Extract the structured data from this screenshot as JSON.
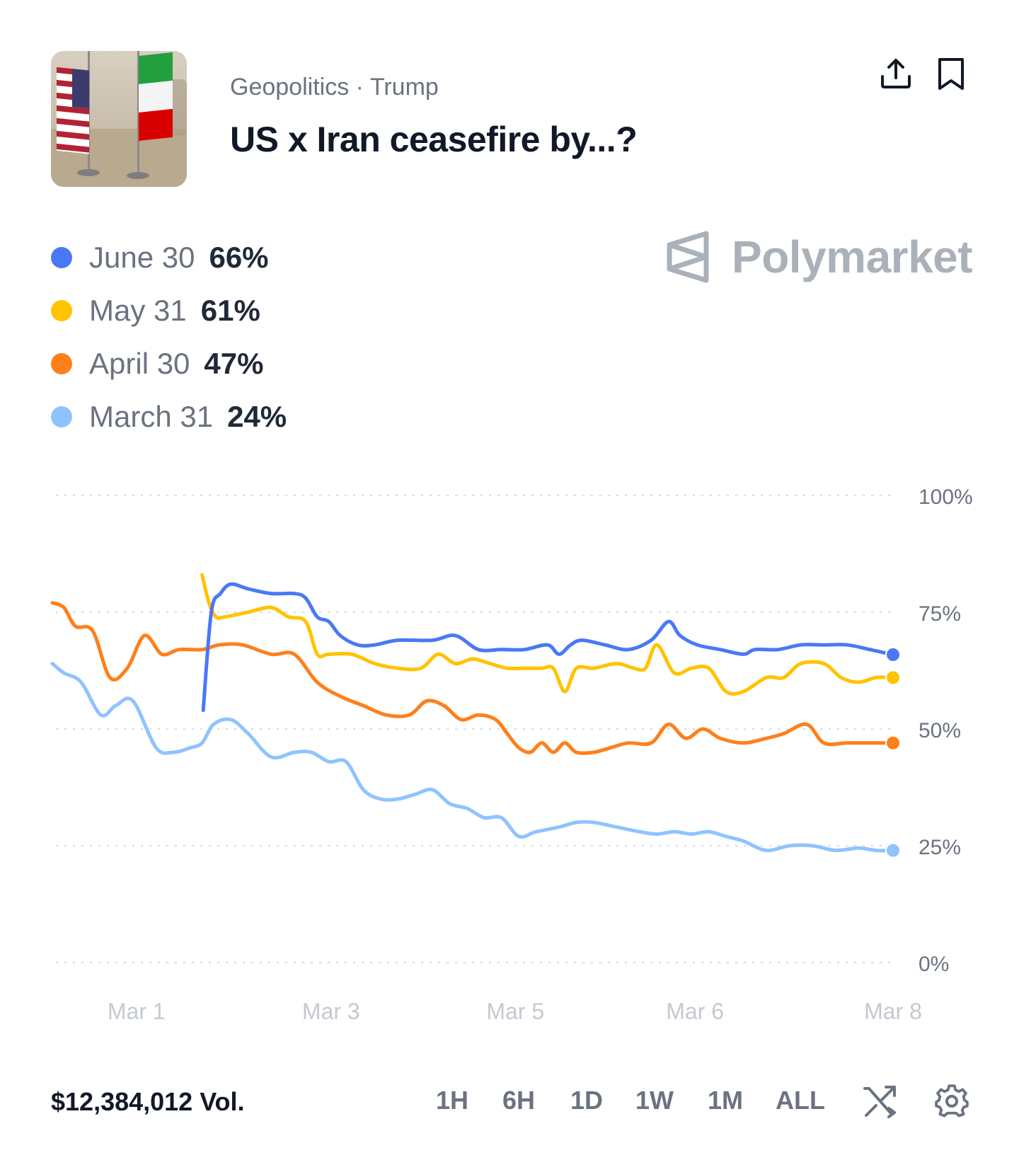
{
  "header": {
    "category": "Geopolitics",
    "separator": "·",
    "tag": "Trump",
    "title": "US x Iran ceasefire by...?",
    "share_icon": "share-icon",
    "bookmark_icon": "bookmark-icon"
  },
  "brand": {
    "name": "Polymarket"
  },
  "legend": [
    {
      "label": "June 30",
      "value": "66%",
      "color": "#4a78f5"
    },
    {
      "label": "May 31",
      "value": "61%",
      "color": "#ffc300"
    },
    {
      "label": "April 30",
      "value": "47%",
      "color": "#ff7f1a"
    },
    {
      "label": "March 31",
      "value": "24%",
      "color": "#8fc3ff"
    }
  ],
  "footer": {
    "volume": "$12,384,012 Vol.",
    "ranges": [
      "1H",
      "6H",
      "1D",
      "1W",
      "1M",
      "ALL"
    ],
    "shuffle_icon": "shuffle-icon",
    "settings_icon": "gear-icon"
  },
  "chart_data": {
    "type": "line",
    "xlim": [
      0,
      7.3
    ],
    "ylim": [
      0,
      100
    ],
    "yticks": [
      "100%",
      "75%",
      "50%",
      "25%",
      "0%"
    ],
    "ytick_values": [
      100,
      75,
      50,
      25,
      0
    ],
    "xticks": [
      "Mar 1",
      "Mar 3",
      "Mar 5",
      "Mar 6",
      "Mar 8"
    ],
    "xtick_values": [
      0.73,
      2.42,
      4.02,
      5.58,
      7.3
    ],
    "grid": true,
    "series": [
      {
        "name": "June 30",
        "color": "#4a78f5",
        "x": [
          1.31,
          1.38,
          1.46,
          1.55,
          1.7,
          1.9,
          2.1,
          2.2,
          2.3,
          2.4,
          2.5,
          2.65,
          2.8,
          3.0,
          3.3,
          3.5,
          3.7,
          3.9,
          4.1,
          4.3,
          4.4,
          4.5,
          4.6,
          4.8,
          5.0,
          5.2,
          5.35,
          5.45,
          5.6,
          5.8,
          6.0,
          6.1,
          6.3,
          6.5,
          6.7,
          6.9,
          7.1,
          7.3
        ],
        "y": [
          54,
          75,
          79,
          81,
          80,
          79,
          79,
          78,
          74,
          73,
          70,
          68,
          68,
          69,
          69,
          70,
          67,
          67,
          67,
          68,
          66,
          68,
          69,
          68,
          67,
          69,
          73,
          70,
          68,
          67,
          66,
          67,
          67,
          68,
          68,
          68,
          67,
          65.9
        ]
      },
      {
        "name": "May 31",
        "color": "#ffc300",
        "x": [
          1.3,
          1.36,
          1.42,
          1.5,
          1.7,
          1.9,
          2.05,
          2.2,
          2.3,
          2.4,
          2.6,
          2.8,
          3.0,
          3.2,
          3.35,
          3.5,
          3.65,
          3.8,
          3.95,
          4.1,
          4.25,
          4.35,
          4.45,
          4.55,
          4.7,
          4.9,
          5.05,
          5.15,
          5.25,
          5.4,
          5.55,
          5.7,
          5.85,
          6.0,
          6.2,
          6.35,
          6.5,
          6.7,
          6.85,
          7.0,
          7.15,
          7.3
        ],
        "y": [
          83,
          77,
          74,
          74,
          75,
          76,
          74,
          73,
          66,
          66,
          66,
          64,
          63,
          63,
          66,
          64,
          65,
          64,
          63,
          63,
          63,
          63,
          58,
          63,
          63,
          64,
          63,
          63,
          68,
          62,
          63,
          63,
          58,
          58,
          61,
          61,
          64,
          64,
          61,
          60,
          61,
          61
        ]
      },
      {
        "name": "April 30",
        "color": "#ff7f1a",
        "x": [
          0,
          0.1,
          0.2,
          0.35,
          0.5,
          0.65,
          0.8,
          0.95,
          1.1,
          1.3,
          1.45,
          1.65,
          1.9,
          2.1,
          2.3,
          2.5,
          2.7,
          2.9,
          3.1,
          3.25,
          3.4,
          3.55,
          3.7,
          3.85,
          3.95,
          4.05,
          4.15,
          4.25,
          4.35,
          4.45,
          4.55,
          4.7,
          4.85,
          5.0,
          5.2,
          5.35,
          5.5,
          5.65,
          5.8,
          6.0,
          6.2,
          6.35,
          6.55,
          6.7,
          6.9,
          7.1,
          7.3
        ],
        "y": [
          77,
          76,
          72,
          71,
          61,
          63,
          70,
          66,
          67,
          67,
          68,
          68,
          66,
          66,
          60,
          57,
          55,
          53,
          53,
          56,
          55,
          52,
          53,
          52,
          49,
          46,
          45,
          47,
          45,
          47,
          45,
          45,
          46,
          47,
          47,
          51,
          48,
          50,
          48,
          47,
          48,
          49,
          51,
          47,
          47,
          47,
          47
        ]
      },
      {
        "name": "March 31",
        "color": "#8fc3ff",
        "x": [
          0,
          0.1,
          0.25,
          0.42,
          0.55,
          0.7,
          0.9,
          1.05,
          1.2,
          1.3,
          1.4,
          1.55,
          1.7,
          1.9,
          2.1,
          2.25,
          2.4,
          2.55,
          2.7,
          2.85,
          3.0,
          3.15,
          3.3,
          3.45,
          3.6,
          3.75,
          3.9,
          4.05,
          4.2,
          4.4,
          4.55,
          4.7,
          4.9,
          5.1,
          5.25,
          5.4,
          5.55,
          5.7,
          5.85,
          6.0,
          6.2,
          6.4,
          6.6,
          6.8,
          7.0,
          7.15,
          7.3
        ],
        "y": [
          64,
          62,
          60,
          53,
          55,
          56,
          46,
          45,
          46,
          47,
          51,
          52,
          49,
          44,
          45,
          45,
          43,
          43,
          37,
          35,
          35,
          36,
          37,
          34,
          33,
          31,
          31,
          27,
          28,
          29,
          30,
          30,
          29,
          28,
          27.5,
          28,
          27.5,
          28,
          27,
          26,
          24,
          25,
          25,
          24,
          24.5,
          24,
          24
        ]
      }
    ]
  }
}
